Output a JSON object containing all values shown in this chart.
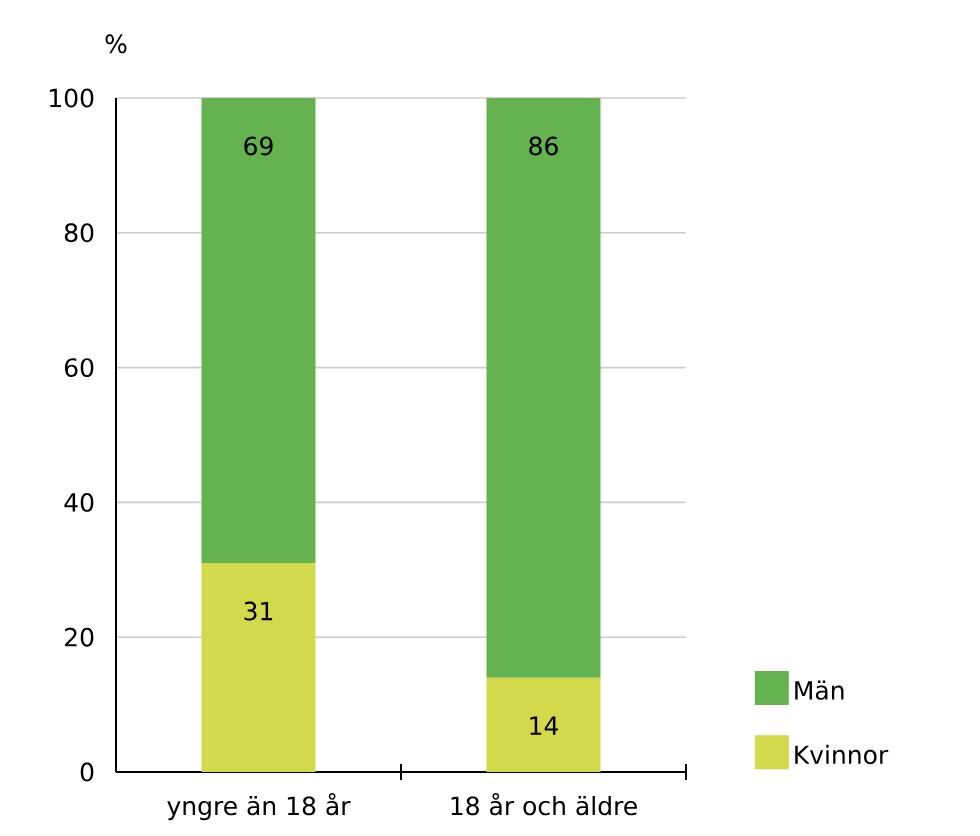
{
  "chart_data": {
    "type": "bar",
    "stacked": true,
    "ylabel": "%",
    "categories": [
      "yngre än 18 år",
      "18 år och äldre"
    ],
    "series": [
      {
        "name": "Kvinnor",
        "color": "#d2da4b",
        "values": [
          31,
          14
        ]
      },
      {
        "name": "Män",
        "color": "#64b250",
        "values": [
          69,
          86
        ]
      }
    ],
    "ylim": [
      0,
      100
    ],
    "yticks": [
      0,
      20,
      40,
      60,
      80,
      100
    ],
    "grid": "y",
    "legend": "bottom right",
    "data_labels": true
  }
}
